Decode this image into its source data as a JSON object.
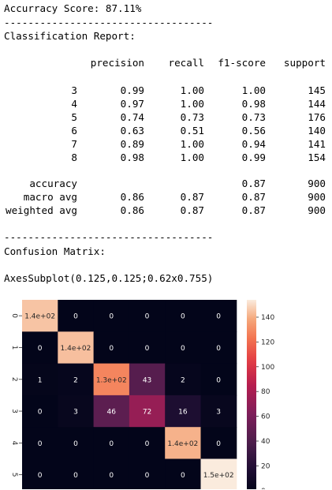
{
  "output": {
    "accuracy_line": "Accurracy Score: 87.11%",
    "divider": "-----------------------------------",
    "report_title": "Classification Report:",
    "confusion_title": "Confusion Matrix:",
    "axes_repr": "AxesSubplot(0.125,0.125;0.62x0.755)"
  },
  "report": {
    "headers": [
      "precision",
      "recall",
      "f1-score",
      "support"
    ],
    "rows": [
      {
        "label": "3",
        "precision": "0.99",
        "recall": "1.00",
        "f1": "1.00",
        "support": "145"
      },
      {
        "label": "4",
        "precision": "0.97",
        "recall": "1.00",
        "f1": "0.98",
        "support": "144"
      },
      {
        "label": "5",
        "precision": "0.74",
        "recall": "0.73",
        "f1": "0.73",
        "support": "176"
      },
      {
        "label": "6",
        "precision": "0.63",
        "recall": "0.51",
        "f1": "0.56",
        "support": "140"
      },
      {
        "label": "7",
        "precision": "0.89",
        "recall": "1.00",
        "f1": "0.94",
        "support": "141"
      },
      {
        "label": "8",
        "precision": "0.98",
        "recall": "1.00",
        "f1": "0.99",
        "support": "154"
      }
    ],
    "summary": [
      {
        "label": "accuracy",
        "precision": "",
        "recall": "",
        "f1": "0.87",
        "support": "900"
      },
      {
        "label": "macro avg",
        "precision": "0.86",
        "recall": "0.87",
        "f1": "0.87",
        "support": "900"
      },
      {
        "label": "weighted avg",
        "precision": "0.86",
        "recall": "0.87",
        "f1": "0.87",
        "support": "900"
      }
    ]
  },
  "chart_data": {
    "type": "heatmap",
    "x_ticks": [
      "0",
      "1",
      "2",
      "3",
      "4",
      "5"
    ],
    "y_ticks": [
      "0",
      "1",
      "2",
      "3",
      "4",
      "5"
    ],
    "values": [
      [
        145,
        0,
        0,
        0,
        0,
        0
      ],
      [
        0,
        144,
        0,
        0,
        0,
        0
      ],
      [
        1,
        2,
        128,
        43,
        2,
        0
      ],
      [
        0,
        3,
        46,
        72,
        16,
        3
      ],
      [
        0,
        0,
        0,
        0,
        141,
        0
      ],
      [
        0,
        0,
        0,
        0,
        0,
        154
      ]
    ],
    "labels": [
      [
        "1.4e+02",
        "0",
        "0",
        "0",
        "0",
        "0"
      ],
      [
        "0",
        "1.4e+02",
        "0",
        "0",
        "0",
        "0"
      ],
      [
        "1",
        "2",
        "1.3e+02",
        "43",
        "2",
        "0"
      ],
      [
        "0",
        "3",
        "46",
        "72",
        "16",
        "3"
      ],
      [
        "0",
        "0",
        "0",
        "0",
        "1.4e+02",
        "0"
      ],
      [
        "0",
        "0",
        "0",
        "0",
        "0",
        "1.5e+02"
      ]
    ],
    "colorbar_ticks": [
      0,
      20,
      40,
      60,
      80,
      100,
      120,
      140
    ],
    "colorbar_range": [
      0,
      154
    ],
    "colormap": "rocket"
  }
}
